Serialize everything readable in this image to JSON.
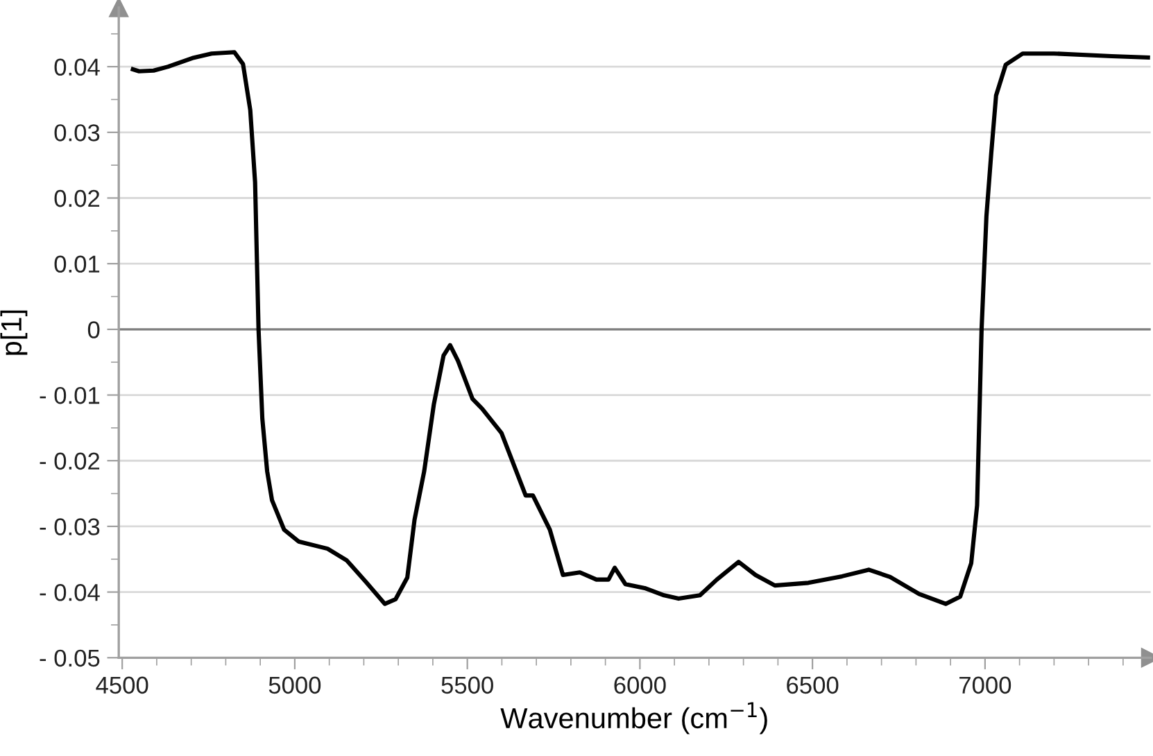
{
  "chart_data": {
    "type": "line",
    "xlabel": "Wavenumber (cm$^{−1}$)",
    "ylabel": "p[1]",
    "xlim": [
      4490,
      7480
    ],
    "ylim": [
      -0.05,
      0.049
    ],
    "xticks": [
      4500,
      5000,
      5500,
      6000,
      6500,
      7000
    ],
    "yticks": [
      {
        "value": -0.05,
        "label": "- 0.05"
      },
      {
        "value": -0.04,
        "label": "- 0.04"
      },
      {
        "value": -0.03,
        "label": "- 0.03"
      },
      {
        "value": -0.02,
        "label": "- 0.02"
      },
      {
        "value": -0.01,
        "label": "- 0.01"
      },
      0,
      0.01,
      0.02,
      0.03,
      0.04
    ],
    "grid": "y",
    "marker": "none",
    "line_style": "solid",
    "ref_lines": [
      {
        "axis": "y",
        "value": 0,
        "color": "#808080"
      }
    ],
    "series": [
      {
        "color": "#000000",
        "x": [
          4531,
          4549,
          4591,
          4633,
          4703,
          4759,
          4825,
          4850,
          4871,
          4885,
          4895,
          4906,
          4920,
          4934,
          4969,
          5011,
          5095,
          5151,
          5207,
          5261,
          5292,
          5326,
          5347,
          5375,
          5403,
          5431,
          5450,
          5473,
          5515,
          5543,
          5599,
          5669,
          5690,
          5739,
          5777,
          5826,
          5874,
          5909,
          5927,
          5958,
          6014,
          6070,
          6112,
          6174,
          6223,
          6286,
          6335,
          6391,
          6488,
          6586,
          6663,
          6725,
          6809,
          6886,
          6928,
          6960,
          6977,
          6990,
          7004,
          7018,
          7032,
          7060,
          7109,
          7200,
          7367,
          7472
        ],
        "values": [
          0.0396,
          0.0393,
          0.0394,
          0.04,
          0.0413,
          0.042,
          0.0422,
          0.0404,
          0.0334,
          0.0224,
          0,
          -0.0136,
          -0.0216,
          -0.026,
          -0.0305,
          -0.0323,
          -0.0334,
          -0.0352,
          -0.0385,
          -0.0418,
          -0.0411,
          -0.0378,
          -0.029,
          -0.0216,
          -0.0114,
          -0.004,
          -0.0024,
          -0.0048,
          -0.0106,
          -0.0121,
          -0.0158,
          -0.0253,
          -0.0253,
          -0.0305,
          -0.0374,
          -0.037,
          -0.0381,
          -0.0381,
          -0.0363,
          -0.0388,
          -0.0394,
          -0.0405,
          -0.041,
          -0.0405,
          -0.0381,
          -0.0354,
          -0.0374,
          -0.039,
          -0.0386,
          -0.0376,
          -0.0366,
          -0.0377,
          -0.0403,
          -0.0418,
          -0.0407,
          -0.0356,
          -0.0268,
          0,
          0.0172,
          0.0268,
          0.0356,
          0.0403,
          0.042,
          0.042,
          0.0416,
          0.0414
        ]
      }
    ]
  }
}
